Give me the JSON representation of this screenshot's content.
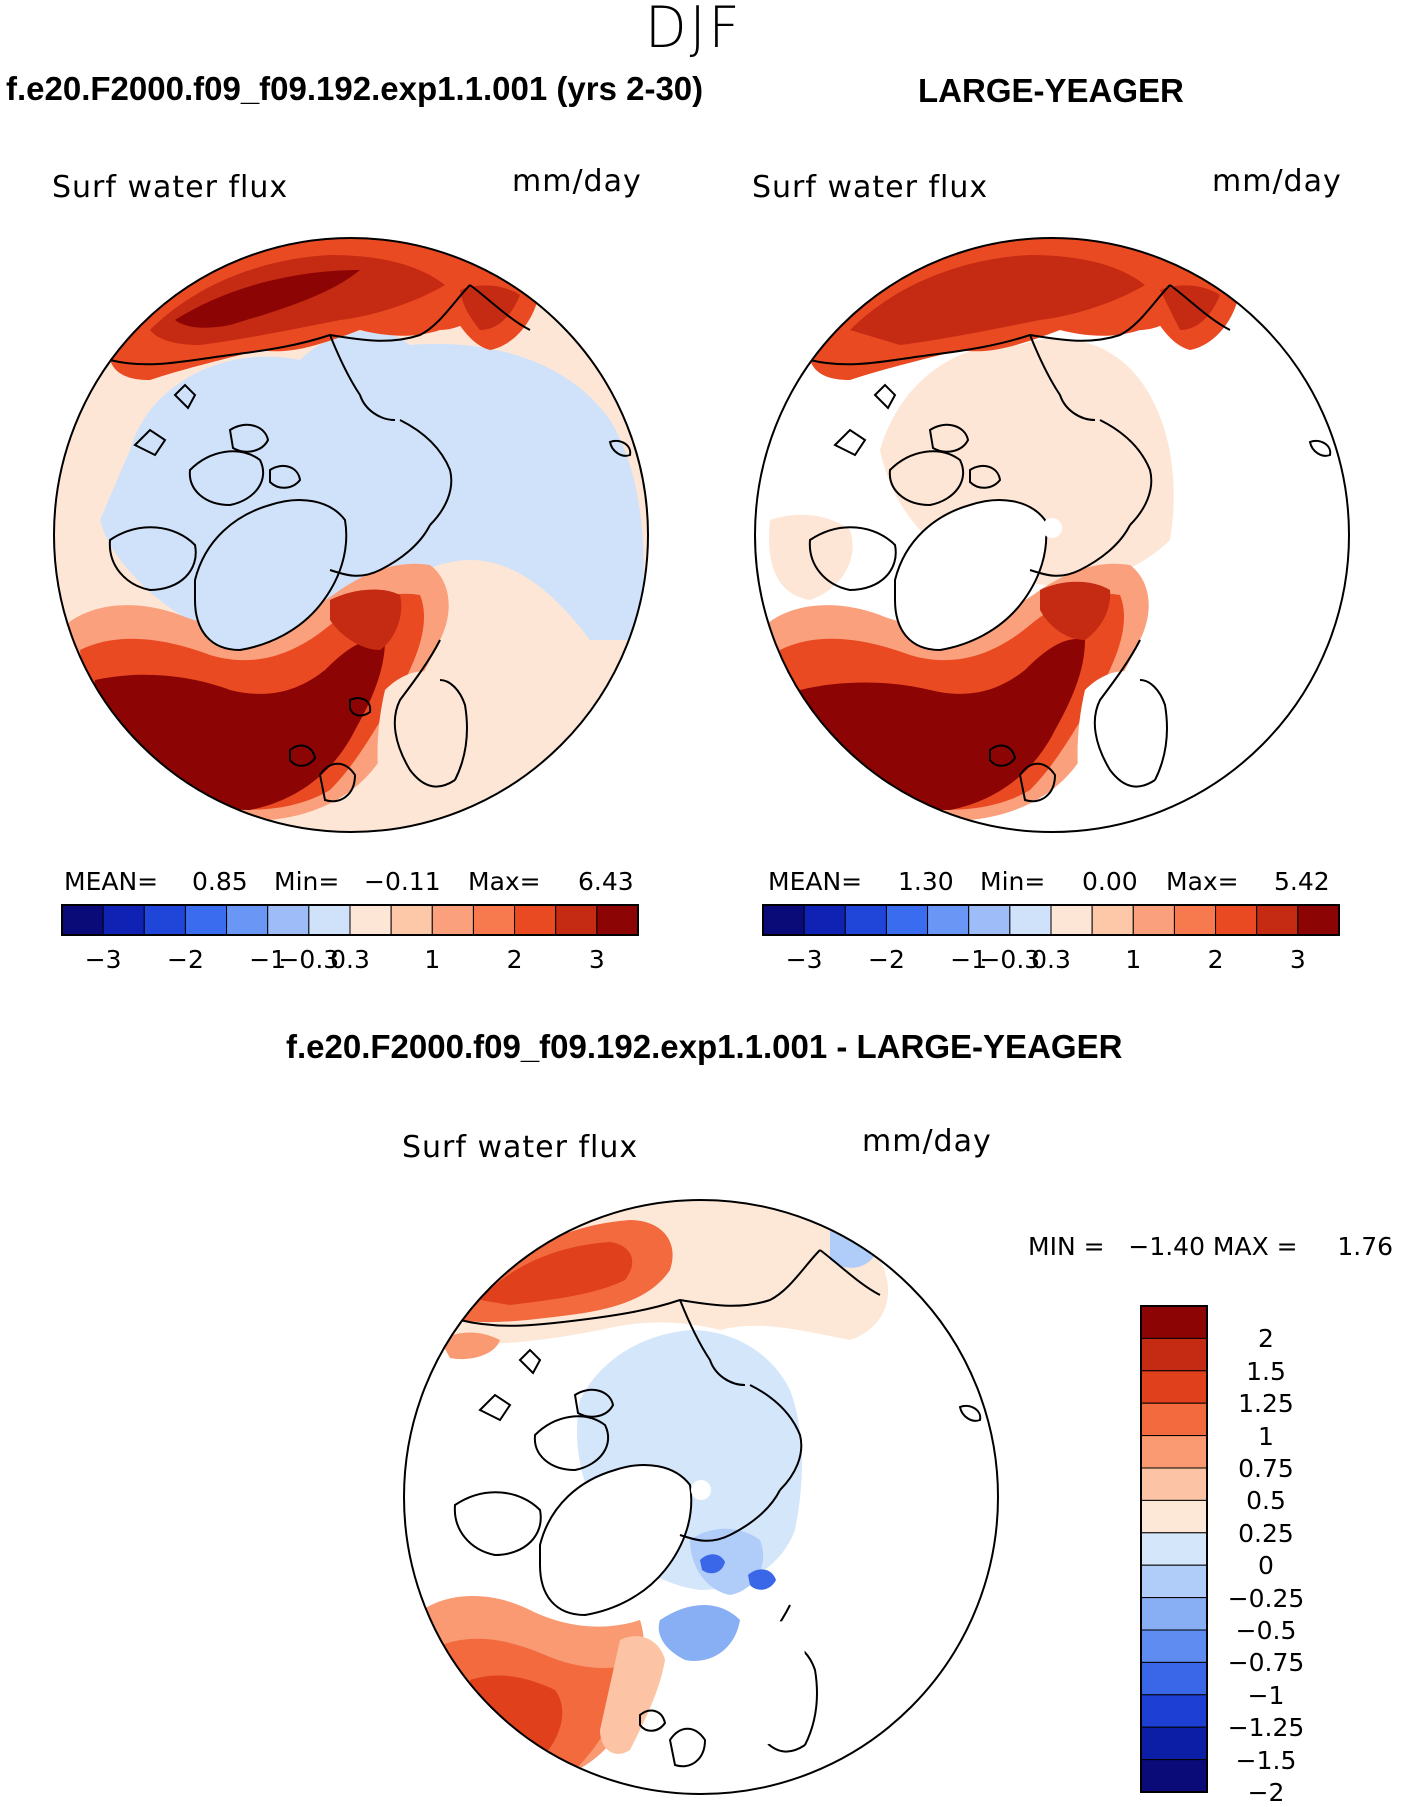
{
  "figure": {
    "season": "DJF"
  },
  "colors": {
    "ctrl_ramp": [
      "#0a0a78",
      "#1022b4",
      "#1f46d8",
      "#3a6cf0",
      "#6a96f6",
      "#9ebcf8",
      "#cfe2fa",
      "#fde6d6",
      "#fcc8a8",
      "#fba07c",
      "#f67a4e",
      "#ea4a22",
      "#c52a12",
      "#8c0404"
    ],
    "diff_ramp": [
      "#8c0404",
      "#c52a12",
      "#e0401c",
      "#f26a3e",
      "#f99a72",
      "#fcc4a4",
      "#fde8d8",
      "#d4e6fa",
      "#b0ccf8",
      "#88aef4",
      "#5e8cf0",
      "#3a66e8",
      "#1d3fd4",
      "#0c1ea6",
      "#0a0a78"
    ],
    "land": "#ffffff",
    "coast": "#000000"
  },
  "panels": {
    "p1": {
      "title": "f.e20.F2000.f09_f09.192.exp1.1.001 (yrs 2-30)",
      "variable": "Surf water flux",
      "units": "mm/day",
      "mean_label": "MEAN=",
      "mean_value": "0.85",
      "min_label": "Min=",
      "min_value": "−0.11",
      "max_label": "Max=",
      "max_value": "6.43",
      "ticks": [
        "−3",
        "−2",
        "−1",
        "−0.3",
        "0.3",
        "1",
        "2",
        "3"
      ]
    },
    "p2": {
      "title": "LARGE-YEAGER",
      "variable": "Surf water flux",
      "units": "mm/day",
      "mean_label": "MEAN=",
      "mean_value": "1.30",
      "min_label": "Min=",
      "min_value": "0.00",
      "max_label": "Max=",
      "max_value": "5.42",
      "ticks": [
        "−3",
        "−2",
        "−1",
        "−0.3",
        "0.3",
        "1",
        "2",
        "3"
      ]
    },
    "p3": {
      "title": "f.e20.F2000.f09_f09.192.exp1.1.001 - LARGE-YEAGER",
      "variable": "Surf water flux",
      "units": "mm/day",
      "minmax_text": "MIN =   −1.40 MAX =     1.76",
      "ticks": [
        "2",
        "1.5",
        "1.25",
        "1",
        "0.75",
        "0.5",
        "0.25",
        "0",
        "−0.25",
        "−0.5",
        "−0.75",
        "−1",
        "−1.25",
        "−1.5",
        "−2"
      ]
    }
  },
  "chart_data": [
    {
      "type": "heatmap",
      "title": "f.e20.F2000.f09_f09.192.exp1.1.001 (yrs 2-30)",
      "variable": "Surf water flux",
      "units": "mm/day",
      "projection": "north polar stereographic",
      "stats": {
        "mean": 0.85,
        "min": -0.11,
        "max": 6.43
      },
      "colorbar_levels": [
        -3,
        -2,
        -1,
        -0.3,
        0.3,
        1,
        2,
        3
      ]
    },
    {
      "type": "heatmap",
      "title": "LARGE-YEAGER",
      "variable": "Surf water flux",
      "units": "mm/day",
      "projection": "north polar stereographic",
      "stats": {
        "mean": 1.3,
        "min": 0.0,
        "max": 5.42
      },
      "colorbar_levels": [
        -3,
        -2,
        -1,
        -0.3,
        0.3,
        1,
        2,
        3
      ]
    },
    {
      "type": "heatmap",
      "title": "f.e20.F2000.f09_f09.192.exp1.1.001 - LARGE-YEAGER",
      "variable": "Surf water flux",
      "units": "mm/day",
      "projection": "north polar stereographic",
      "stats": {
        "min": -1.4,
        "max": 1.76
      },
      "colorbar_levels": [
        2,
        1.5,
        1.25,
        1,
        0.75,
        0.5,
        0.25,
        0,
        -0.25,
        -0.5,
        -0.75,
        -1,
        -1.25,
        -1.5,
        -2
      ]
    }
  ]
}
